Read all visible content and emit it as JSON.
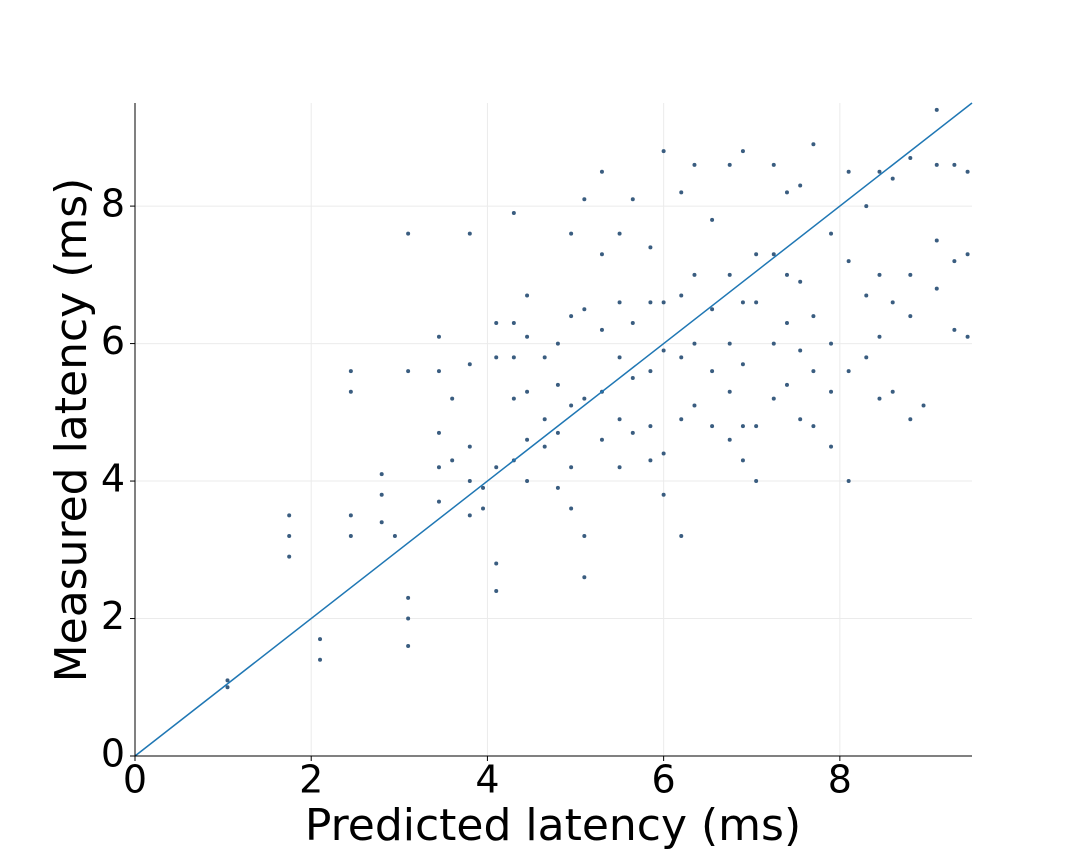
{
  "chart_data": {
    "type": "scatter",
    "x_label": "Predicted latency (ms)",
    "y_label": "Measured latency (ms)",
    "xlim": [
      0,
      9.5
    ],
    "ylim": [
      0,
      9.5
    ],
    "xticks": [
      0,
      2,
      4,
      6,
      8
    ],
    "yticks": [
      0,
      2,
      4,
      6,
      8
    ],
    "grid": true,
    "color": "#3a5d80",
    "x": [
      1.05,
      1.05,
      1.75,
      1.75,
      1.75,
      2.1,
      2.1,
      2.45,
      2.45,
      2.45,
      2.45,
      2.8,
      2.8,
      2.8,
      2.95,
      3.1,
      3.1,
      3.1,
      3.1,
      3.1,
      3.45,
      3.45,
      3.45,
      3.45,
      3.45,
      3.6,
      3.6,
      3.8,
      3.8,
      3.8,
      3.8,
      3.8,
      3.95,
      3.95,
      4.1,
      4.1,
      4.1,
      4.1,
      4.1,
      4.3,
      4.3,
      4.3,
      4.3,
      4.3,
      4.45,
      4.45,
      4.45,
      4.45,
      4.45,
      4.65,
      4.65,
      4.65,
      4.8,
      4.8,
      4.8,
      4.8,
      4.95,
      4.95,
      4.95,
      4.95,
      4.95,
      5.1,
      5.1,
      5.1,
      5.1,
      5.1,
      5.3,
      5.3,
      5.3,
      5.3,
      5.3,
      5.5,
      5.5,
      5.5,
      5.5,
      5.5,
      5.65,
      5.65,
      5.65,
      5.65,
      5.85,
      5.85,
      5.85,
      5.85,
      5.85,
      6.0,
      6.0,
      6.0,
      6.0,
      6.0,
      6.2,
      6.2,
      6.2,
      6.2,
      6.2,
      6.35,
      6.35,
      6.35,
      6.35,
      6.55,
      6.55,
      6.55,
      6.55,
      6.75,
      6.75,
      6.75,
      6.75,
      6.75,
      6.9,
      6.9,
      6.9,
      6.9,
      6.9,
      7.05,
      7.05,
      7.05,
      7.05,
      7.25,
      7.25,
      7.25,
      7.25,
      7.4,
      7.4,
      7.4,
      7.4,
      7.55,
      7.55,
      7.55,
      7.55,
      7.7,
      7.7,
      7.7,
      7.7,
      7.9,
      7.9,
      7.9,
      7.9,
      8.1,
      8.1,
      8.1,
      8.1,
      8.3,
      8.3,
      8.3,
      8.45,
      8.45,
      8.45,
      8.45,
      8.6,
      8.6,
      8.6,
      8.8,
      8.8,
      8.8,
      8.8,
      8.95,
      9.1,
      9.1,
      9.1,
      9.1,
      9.3,
      9.3,
      9.3,
      9.45,
      9.45,
      9.45
    ],
    "y": [
      1.0,
      1.1,
      2.9,
      3.2,
      3.5,
      1.4,
      1.7,
      3.2,
      3.5,
      5.3,
      5.6,
      3.4,
      3.8,
      4.1,
      3.2,
      1.6,
      2.0,
      2.3,
      5.6,
      7.6,
      3.7,
      4.2,
      4.7,
      5.6,
      6.1,
      4.3,
      5.2,
      3.5,
      4.0,
      4.5,
      5.7,
      7.6,
      3.6,
      3.9,
      2.4,
      2.8,
      4.2,
      5.8,
      6.3,
      4.3,
      5.2,
      5.8,
      6.3,
      7.9,
      4.0,
      4.6,
      5.3,
      6.1,
      6.7,
      4.5,
      4.9,
      5.8,
      3.9,
      4.7,
      5.4,
      6.0,
      3.6,
      4.2,
      5.1,
      6.4,
      7.6,
      2.6,
      3.2,
      5.2,
      6.5,
      8.1,
      4.6,
      5.3,
      6.2,
      7.3,
      8.5,
      4.2,
      4.9,
      5.8,
      6.6,
      7.6,
      4.7,
      5.5,
      6.3,
      8.1,
      4.3,
      4.8,
      5.6,
      6.6,
      7.4,
      3.8,
      4.4,
      5.9,
      6.6,
      8.8,
      3.2,
      4.9,
      5.8,
      6.7,
      8.2,
      5.1,
      6.0,
      7.0,
      8.6,
      4.8,
      5.6,
      6.5,
      7.8,
      4.6,
      5.3,
      6.0,
      7.0,
      8.6,
      4.3,
      4.8,
      5.7,
      6.6,
      8.8,
      4.0,
      4.8,
      6.6,
      7.3,
      5.2,
      6.0,
      7.3,
      8.6,
      5.4,
      6.3,
      7.0,
      8.2,
      4.9,
      5.9,
      6.9,
      8.3,
      4.8,
      5.6,
      6.4,
      8.9,
      4.5,
      5.3,
      6.0,
      7.6,
      4.0,
      5.6,
      7.2,
      8.5,
      5.8,
      6.7,
      8.0,
      5.2,
      6.1,
      7.0,
      8.5,
      5.3,
      6.6,
      8.4,
      4.9,
      6.4,
      7.0,
      8.7,
      5.1,
      6.8,
      7.5,
      8.6,
      9.4,
      6.2,
      7.2,
      8.6,
      6.1,
      7.3,
      8.5
    ],
    "reference_line": {
      "x": [
        0,
        9.5
      ],
      "y": [
        0,
        9.5
      ],
      "color": "#1f77b4"
    }
  }
}
